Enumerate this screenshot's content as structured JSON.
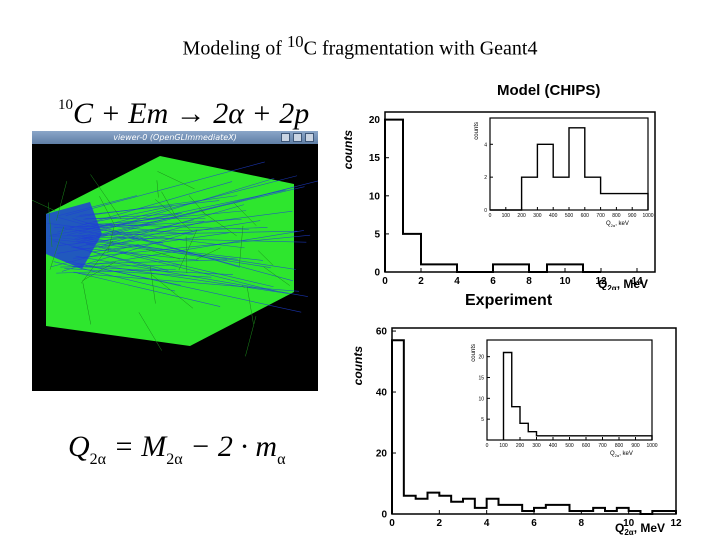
{
  "slide": {
    "title_pre": "Modeling of ",
    "title_sup": "10",
    "title_post": "C fragmentation with Geant4",
    "reaction": {
      "mass": "10",
      "lhs": "C + Em",
      "arrow": "→",
      "rhs_part1": "2",
      "alpha": "α",
      "rhs_part2": " + 2",
      "proton": "p"
    },
    "q_formula": {
      "q": "Q",
      "q_sub": "2α",
      "eq": " = M",
      "m_sub": "2α",
      "rest": " − 2 · m",
      "ma_sub": "α"
    }
  },
  "viewer": {
    "title": "viewer-0 (OpenGLImmediateX)",
    "colors": {
      "background": "#000000",
      "volume": "#2ee62e",
      "tracks": "#1f3fd6"
    }
  },
  "chart_data": [
    {
      "type": "histogram",
      "title": "Model (CHIPS)",
      "ylabel": "counts",
      "xlabel_main": "Q",
      "xlabel_sub": "2α",
      "xlabel_unit": ", MeV",
      "xlim": [
        0,
        15
      ],
      "ylim": [
        0,
        21
      ],
      "xticks": [
        "0",
        "2",
        "4",
        "6",
        "8",
        "10",
        "12",
        "14"
      ],
      "yticks": [
        "0",
        "5",
        "10",
        "15",
        "20"
      ],
      "bins": [
        [
          0,
          1,
          20
        ],
        [
          1,
          2,
          5
        ],
        [
          2,
          4,
          1
        ],
        [
          4,
          6,
          0
        ],
        [
          6,
          8,
          1
        ],
        [
          8,
          9,
          0
        ],
        [
          9,
          11,
          1
        ],
        [
          11,
          12,
          0
        ]
      ],
      "color": "#000000",
      "inset": {
        "ylabel": "counts",
        "xlabel_main": "Q",
        "xlabel_sub": "2α",
        "xlabel_unit": ", keV",
        "xlim": [
          0,
          1000
        ],
        "ylim": [
          0,
          5.6
        ],
        "xticks": [
          "0",
          "100",
          "200",
          "300",
          "400",
          "500",
          "600",
          "700",
          "800",
          "900",
          "1000"
        ],
        "yticks": [
          "0",
          "2",
          "4"
        ],
        "bins": [
          [
            0,
            200,
            0
          ],
          [
            200,
            300,
            2
          ],
          [
            300,
            400,
            4
          ],
          [
            400,
            500,
            2
          ],
          [
            500,
            600,
            5
          ],
          [
            600,
            700,
            2
          ],
          [
            700,
            1000,
            1
          ]
        ]
      }
    },
    {
      "type": "histogram",
      "title": "Experiment",
      "ylabel": "counts",
      "xlabel_main": "Q",
      "xlabel_sub": "2α",
      "xlabel_unit": ", MeV",
      "xlim": [
        0,
        12
      ],
      "ylim": [
        0,
        61
      ],
      "xticks": [
        "0",
        "2",
        "4",
        "6",
        "8",
        "10",
        "12"
      ],
      "yticks": [
        "0",
        "20",
        "40",
        "60"
      ],
      "bins": [
        [
          0,
          0.5,
          57
        ],
        [
          0.5,
          1,
          6
        ],
        [
          1,
          1.5,
          5
        ],
        [
          1.5,
          2,
          7
        ],
        [
          2,
          2.5,
          6
        ],
        [
          2.5,
          3,
          4
        ],
        [
          3,
          3.5,
          5
        ],
        [
          3.5,
          4,
          2
        ],
        [
          4,
          4.5,
          5
        ],
        [
          4.5,
          5,
          3
        ],
        [
          5,
          5.5,
          3
        ],
        [
          5.5,
          6,
          1
        ],
        [
          6,
          6.5,
          2
        ],
        [
          6.5,
          7,
          3
        ],
        [
          7,
          7.5,
          3
        ],
        [
          7.5,
          8,
          1
        ],
        [
          8,
          8.5,
          1
        ],
        [
          8.5,
          9,
          2
        ],
        [
          9,
          9.5,
          1
        ],
        [
          9.5,
          10,
          2
        ],
        [
          10,
          10.5,
          1
        ],
        [
          10.5,
          11,
          0
        ],
        [
          11,
          11.5,
          1
        ],
        [
          11.5,
          12,
          1
        ]
      ],
      "color": "#000000",
      "inset": {
        "ylabel": "counts",
        "xlabel_main": "Q",
        "xlabel_sub": "2α",
        "xlabel_unit": ", keV",
        "xlim": [
          0,
          1000
        ],
        "ylim": [
          0,
          24
        ],
        "xticks": [
          "0",
          "100",
          "200",
          "300",
          "400",
          "500",
          "600",
          "700",
          "800",
          "900",
          "1000"
        ],
        "yticks": [
          "5",
          "10",
          "15",
          "20"
        ],
        "bins": [
          [
            100,
            150,
            21
          ],
          [
            150,
            200,
            8
          ],
          [
            200,
            250,
            4
          ],
          [
            250,
            300,
            2
          ],
          [
            300,
            1000,
            1
          ]
        ]
      }
    }
  ]
}
